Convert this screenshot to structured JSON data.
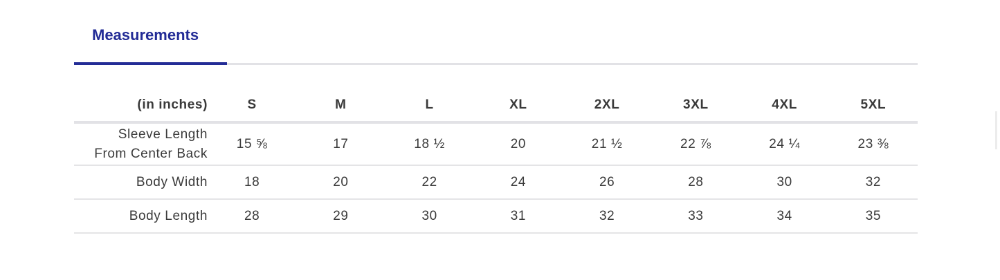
{
  "tabs": [
    {
      "label": "Measurements",
      "active": true
    }
  ],
  "accent_color": "#232c96",
  "table": {
    "unit_label": "(in inches)",
    "sizes": [
      "S",
      "M",
      "L",
      "XL",
      "2XL",
      "3XL",
      "4XL",
      "5XL"
    ],
    "rows": [
      {
        "label_line1": "Sleeve Length",
        "label_line2": "From Center Back",
        "values": [
          "15 ⅝",
          "17",
          "18 ½",
          "20",
          "21 ½",
          "22 ⅞",
          "24 ¼",
          "23 ⅜"
        ]
      },
      {
        "label_line1": "Body Width",
        "values": [
          "18",
          "20",
          "22",
          "24",
          "26",
          "28",
          "30",
          "32"
        ]
      },
      {
        "label_line1": "Body Length",
        "values": [
          "28",
          "29",
          "30",
          "31",
          "32",
          "33",
          "34",
          "35"
        ]
      }
    ]
  }
}
